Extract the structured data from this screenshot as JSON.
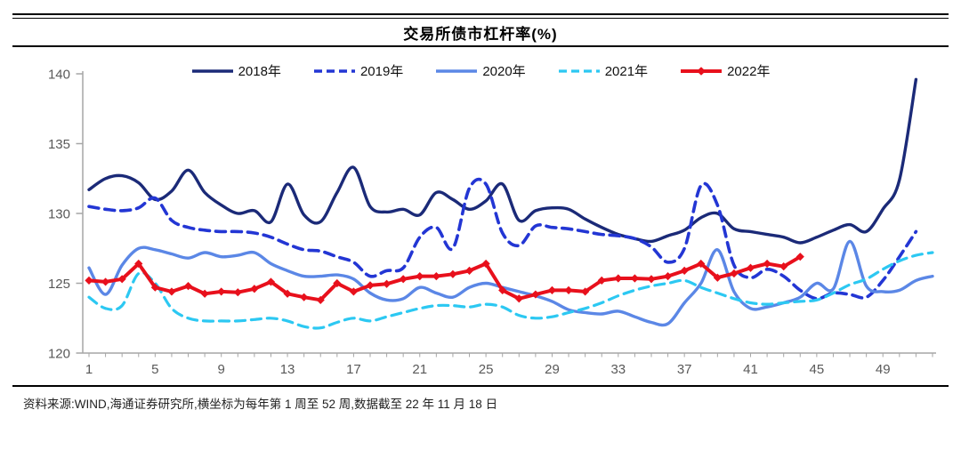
{
  "header": {
    "title": "交易所债市杠杆率(%)"
  },
  "footer": {
    "source_note": "资料来源:WIND,海通证券研究所,横坐标为每年第 1 周至 52 周,数据截至 22 年 11 月 18 日"
  },
  "chart_data": {
    "type": "line",
    "title": "交易所债市杠杆率(%)",
    "xlabel": "",
    "ylabel": "",
    "xlim": [
      1,
      52
    ],
    "ylim": [
      120,
      140
    ],
    "grid": false,
    "legend_position": "top-center",
    "x_ticks": [
      1,
      5,
      9,
      13,
      17,
      21,
      25,
      29,
      33,
      37,
      41,
      45,
      49
    ],
    "y_ticks": [
      120,
      125,
      130,
      135,
      140
    ],
    "x": [
      1,
      2,
      3,
      4,
      5,
      6,
      7,
      8,
      9,
      10,
      11,
      12,
      13,
      14,
      15,
      16,
      17,
      18,
      19,
      20,
      21,
      22,
      23,
      24,
      25,
      26,
      27,
      28,
      29,
      30,
      31,
      32,
      33,
      34,
      35,
      36,
      37,
      38,
      39,
      40,
      41,
      42,
      43,
      44,
      45,
      46,
      47,
      48,
      49,
      50,
      51,
      52
    ],
    "series": [
      {
        "name": "2018年",
        "color": "#1b2a78",
        "style": "solid",
        "marker": "none",
        "width": 3.4,
        "values": [
          131.7,
          132.5,
          132.7,
          132.2,
          131.0,
          131.6,
          133.1,
          131.5,
          130.6,
          130.0,
          130.2,
          129.4,
          132.1,
          129.9,
          129.4,
          131.5,
          133.3,
          130.5,
          130.1,
          130.3,
          129.9,
          131.5,
          131.0,
          130.3,
          130.9,
          132.1,
          129.5,
          130.2,
          130.4,
          130.3,
          129.6,
          129.0,
          128.5,
          128.2,
          128.0,
          128.4,
          128.8,
          129.7,
          130.0,
          128.9,
          128.7,
          128.5,
          128.3,
          127.9,
          128.3,
          128.8,
          129.2,
          128.7,
          130.3,
          132.4,
          139.6,
          null
        ]
      },
      {
        "name": "2019年",
        "color": "#2336d4",
        "style": "dashed",
        "marker": "none",
        "width": 3.6,
        "values": [
          130.5,
          130.3,
          130.2,
          130.4,
          131.1,
          129.5,
          129.0,
          128.8,
          128.7,
          128.7,
          128.6,
          128.3,
          127.8,
          127.4,
          127.3,
          126.9,
          126.5,
          125.5,
          125.9,
          126.1,
          128.3,
          129.0,
          127.5,
          131.8,
          132.1,
          128.6,
          127.7,
          129.1,
          129.0,
          128.9,
          128.7,
          128.5,
          128.4,
          128.2,
          127.6,
          126.5,
          127.5,
          132.0,
          130.6,
          126.3,
          125.4,
          126.0,
          125.5,
          124.5,
          123.9,
          124.3,
          124.2,
          124.0,
          125.2,
          126.9,
          128.7,
          null
        ]
      },
      {
        "name": "2020年",
        "color": "#5b87e6",
        "style": "solid",
        "marker": "none",
        "width": 3.4,
        "values": [
          126.1,
          124.2,
          126.3,
          127.5,
          127.4,
          127.1,
          126.8,
          127.2,
          126.9,
          127.0,
          127.2,
          126.4,
          125.9,
          125.5,
          125.5,
          125.6,
          125.3,
          124.3,
          123.8,
          123.9,
          124.7,
          124.3,
          124.0,
          124.7,
          125.0,
          124.7,
          124.4,
          124.1,
          123.7,
          123.1,
          122.9,
          122.8,
          123.0,
          122.6,
          122.2,
          122.1,
          123.6,
          125.0,
          127.4,
          124.4,
          123.2,
          123.3,
          123.6,
          124.0,
          125.0,
          124.6,
          128.0,
          124.8,
          124.4,
          124.5,
          125.2,
          125.5
        ]
      },
      {
        "name": "2021年",
        "color": "#2cc8f2",
        "style": "dashed",
        "marker": "none",
        "width": 3.2,
        "values": [
          124.0,
          123.2,
          123.4,
          125.7,
          125.0,
          123.2,
          122.5,
          122.3,
          122.3,
          122.3,
          122.4,
          122.5,
          122.3,
          121.9,
          121.8,
          122.2,
          122.5,
          122.3,
          122.6,
          122.9,
          123.2,
          123.4,
          123.4,
          123.3,
          123.5,
          123.3,
          122.7,
          122.5,
          122.6,
          122.9,
          123.2,
          123.6,
          124.1,
          124.5,
          124.8,
          125.0,
          125.2,
          124.7,
          124.3,
          123.9,
          123.6,
          123.5,
          123.6,
          123.7,
          123.8,
          124.3,
          124.9,
          125.3,
          126.0,
          126.6,
          127.0,
          127.2
        ]
      },
      {
        "name": "2022年",
        "color": "#e8101c",
        "style": "solid",
        "marker": "diamond",
        "width": 4,
        "values": [
          125.2,
          125.1,
          125.3,
          126.4,
          124.7,
          124.4,
          124.8,
          124.25,
          124.4,
          124.35,
          124.6,
          125.1,
          124.25,
          124.0,
          123.8,
          125.0,
          124.4,
          124.85,
          124.95,
          125.3,
          125.5,
          125.5,
          125.65,
          125.9,
          126.4,
          124.5,
          123.9,
          124.2,
          124.5,
          124.5,
          124.4,
          125.2,
          125.35,
          125.35,
          125.3,
          125.5,
          125.9,
          126.4,
          125.4,
          125.7,
          126.1,
          126.4,
          126.2,
          126.9,
          null,
          null,
          null,
          null,
          null,
          null,
          null,
          null
        ]
      }
    ]
  }
}
